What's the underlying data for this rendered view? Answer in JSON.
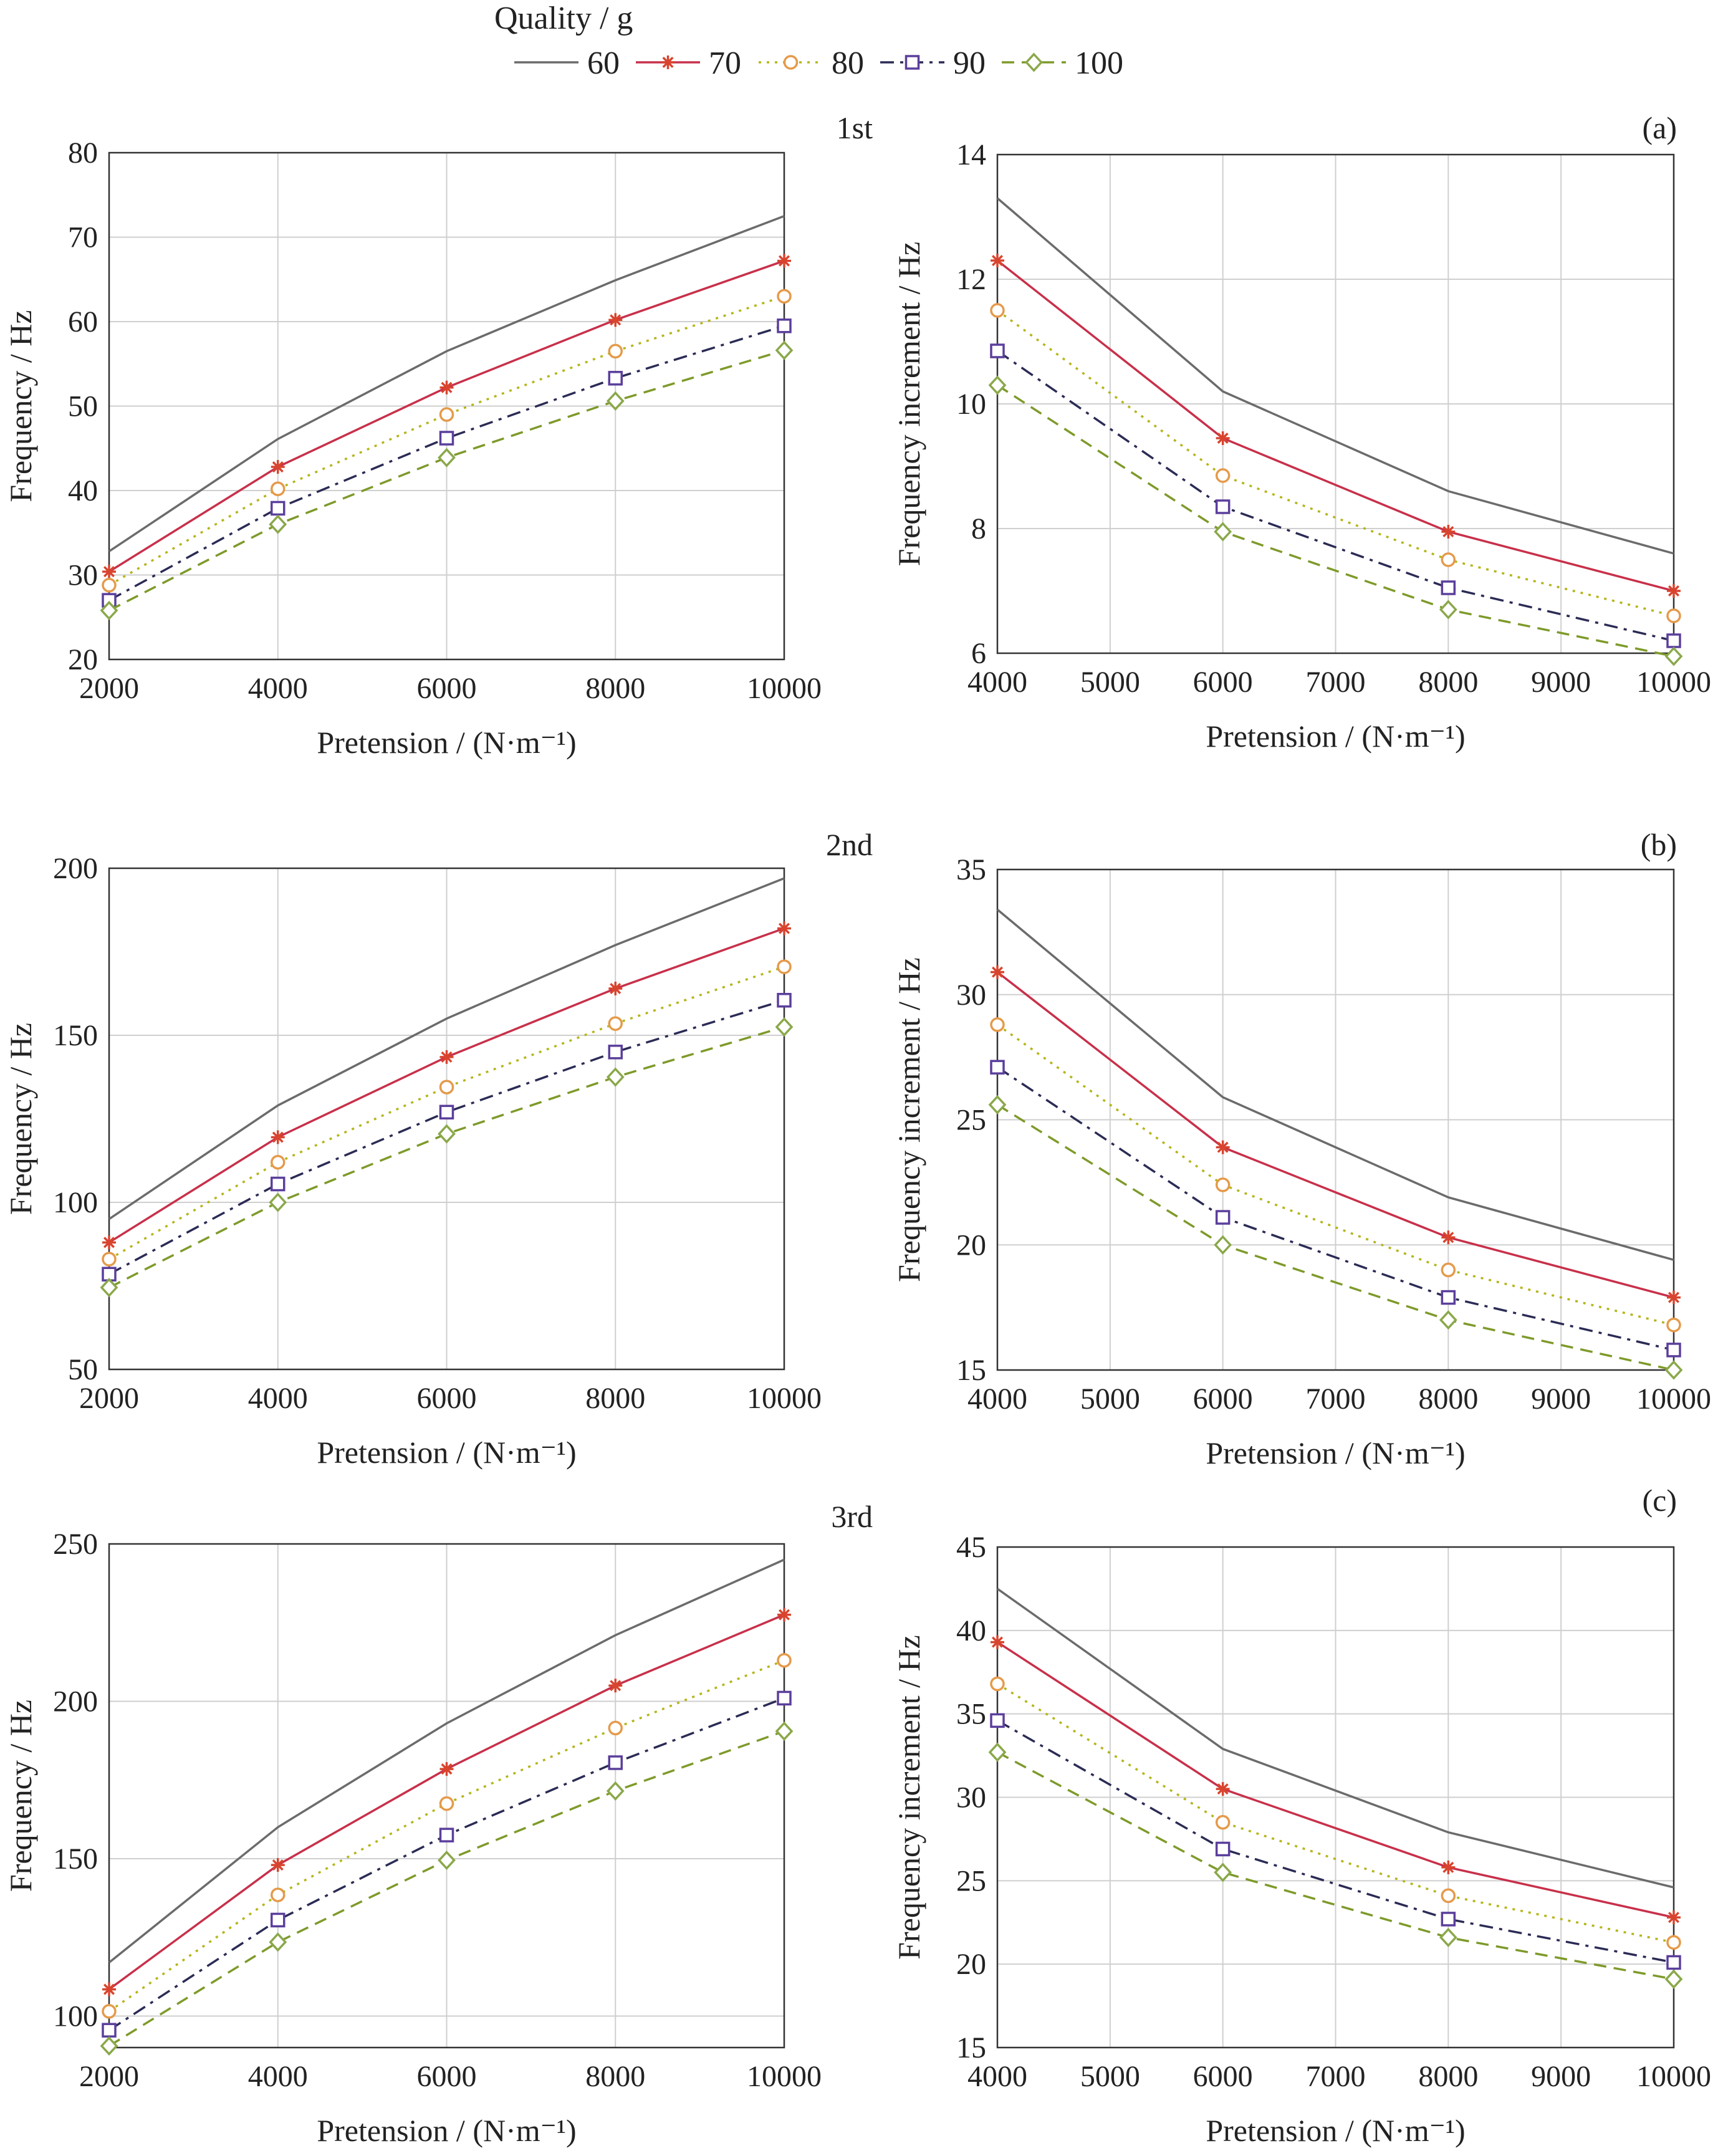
{
  "legend": {
    "title": "Quality / g",
    "entries": [
      {
        "label": "60",
        "color": "#6b6b6b",
        "marker": "none",
        "dash": "solid"
      },
      {
        "label": "70",
        "color": "#c8304a",
        "marker": "star",
        "dash": "solid"
      },
      {
        "label": "80",
        "color": "#b5b51a",
        "marker": "circle",
        "dash": "dotted"
      },
      {
        "label": "90",
        "color": "#2b2b55",
        "marker": "square",
        "dash": "dashdot"
      },
      {
        "label": "100",
        "color": "#7e9a2a",
        "marker": "diamond",
        "dash": "dashed"
      }
    ]
  },
  "marker_colors": {
    "star": "#d8442e",
    "circle": "#e59a4a",
    "square": "#5b3f9c",
    "diamond": "#8aa84a"
  },
  "chart_data": [
    {
      "type": "line",
      "panel_label": "1st",
      "xlabel": "Pretension / (N·m⁻¹)",
      "ylabel": "Frequency / Hz",
      "xlim": [
        2000,
        10000
      ],
      "ylim": [
        20,
        80
      ],
      "xticks": [
        "2000",
        "4000",
        "6000",
        "8000",
        "10000"
      ],
      "yticks": [
        "20",
        "30",
        "40",
        "50",
        "60",
        "70",
        "80"
      ],
      "x": [
        2000,
        4000,
        6000,
        8000,
        10000
      ],
      "series": [
        {
          "name": "60",
          "values": [
            32.8,
            46.1,
            56.5,
            64.9,
            72.5
          ]
        },
        {
          "name": "70",
          "values": [
            30.4,
            42.8,
            52.2,
            60.2,
            67.2
          ]
        },
        {
          "name": "80",
          "values": [
            28.8,
            40.2,
            49.0,
            56.5,
            63.0
          ]
        },
        {
          "name": "90",
          "values": [
            27.0,
            37.9,
            46.2,
            53.3,
            59.5
          ]
        },
        {
          "name": "100",
          "values": [
            25.8,
            36.0,
            43.9,
            50.6,
            56.6
          ]
        }
      ]
    },
    {
      "type": "line",
      "panel_label": "(a)",
      "xlabel": "Pretension / (N·m⁻¹)",
      "ylabel": "Frequency increment / Hz",
      "xlim": [
        4000,
        10000
      ],
      "ylim": [
        6,
        14
      ],
      "xticks": [
        "4000",
        "5000",
        "6000",
        "7000",
        "8000",
        "9000",
        "10000"
      ],
      "yticks": [
        "6",
        "8",
        "10",
        "12",
        "14"
      ],
      "x": [
        4000,
        6000,
        8000,
        10000
      ],
      "series": [
        {
          "name": "60",
          "values": [
            13.3,
            10.2,
            8.6,
            7.6
          ]
        },
        {
          "name": "70",
          "values": [
            12.3,
            9.45,
            7.95,
            7.0
          ]
        },
        {
          "name": "80",
          "values": [
            11.5,
            8.85,
            7.5,
            6.6
          ]
        },
        {
          "name": "90",
          "values": [
            10.85,
            8.35,
            7.05,
            6.2
          ]
        },
        {
          "name": "100",
          "values": [
            10.3,
            7.95,
            6.7,
            5.95
          ]
        }
      ]
    },
    {
      "type": "line",
      "panel_label": "2nd",
      "xlabel": "Pretension / (N·m⁻¹)",
      "ylabel": "Frequency / Hz",
      "xlim": [
        2000,
        10000
      ],
      "ylim": [
        50,
        200
      ],
      "xticks": [
        "2000",
        "4000",
        "6000",
        "8000",
        "10000"
      ],
      "yticks": [
        "50",
        "100",
        "150",
        "200"
      ],
      "x": [
        2000,
        4000,
        6000,
        8000,
        10000
      ],
      "series": [
        {
          "name": "60",
          "values": [
            95,
            129,
            155,
            177,
            197
          ]
        },
        {
          "name": "70",
          "values": [
            88,
            119.5,
            143.5,
            164,
            182
          ]
        },
        {
          "name": "80",
          "values": [
            83,
            112,
            134.5,
            153.5,
            170.5
          ]
        },
        {
          "name": "90",
          "values": [
            78.5,
            105.5,
            127,
            145,
            160.5
          ]
        },
        {
          "name": "100",
          "values": [
            74.5,
            100,
            120.5,
            137.5,
            152.5
          ]
        }
      ]
    },
    {
      "type": "line",
      "panel_label": "(b)",
      "xlabel": "Pretension / (N·m⁻¹)",
      "ylabel": "Frequency increment / Hz",
      "xlim": [
        4000,
        10000
      ],
      "ylim": [
        15,
        35
      ],
      "xticks": [
        "4000",
        "5000",
        "6000",
        "7000",
        "8000",
        "9000",
        "10000"
      ],
      "yticks": [
        "15",
        "20",
        "25",
        "30",
        "35"
      ],
      "x": [
        4000,
        6000,
        8000,
        10000
      ],
      "series": [
        {
          "name": "60",
          "values": [
            33.4,
            25.9,
            21.9,
            19.4
          ]
        },
        {
          "name": "70",
          "values": [
            30.9,
            23.9,
            20.3,
            17.9
          ]
        },
        {
          "name": "80",
          "values": [
            28.8,
            22.4,
            19.0,
            16.8
          ]
        },
        {
          "name": "90",
          "values": [
            27.1,
            21.1,
            17.9,
            15.8
          ]
        },
        {
          "name": "100",
          "values": [
            25.6,
            20.0,
            17.0,
            15.0
          ]
        }
      ]
    },
    {
      "type": "line",
      "panel_label": "3rd",
      "panel_label2": "(c)",
      "xlabel": "Pretension / (N·m⁻¹)",
      "ylabel": "Frequency / Hz",
      "xlim": [
        2000,
        10000
      ],
      "ylim": [
        90,
        250
      ],
      "xticks": [
        "2000",
        "4000",
        "6000",
        "8000",
        "10000"
      ],
      "yticks": [
        "100",
        "150",
        "200",
        "250"
      ],
      "x": [
        2000,
        4000,
        6000,
        8000,
        10000
      ],
      "series": [
        {
          "name": "60",
          "values": [
            117,
            160,
            193,
            221,
            245
          ]
        },
        {
          "name": "70",
          "values": [
            108.5,
            148,
            178.5,
            205,
            227.5
          ]
        },
        {
          "name": "80",
          "values": [
            101.5,
            138.5,
            167.5,
            191.5,
            213
          ]
        },
        {
          "name": "90",
          "values": [
            95.5,
            130.5,
            157.5,
            180.5,
            201
          ]
        },
        {
          "name": "100",
          "values": [
            90.5,
            123.5,
            149.5,
            171.5,
            190.5
          ]
        }
      ]
    },
    {
      "type": "line",
      "panel_label": "",
      "xlabel": "Pretension / (N·m⁻¹)",
      "ylabel": "Frequency increment / Hz",
      "xlim": [
        4000,
        10000
      ],
      "ylim": [
        15,
        45
      ],
      "xticks": [
        "4000",
        "5000",
        "6000",
        "7000",
        "8000",
        "9000",
        "10000"
      ],
      "yticks": [
        "15",
        "20",
        "25",
        "30",
        "35",
        "40",
        "45"
      ],
      "x": [
        4000,
        6000,
        8000,
        10000
      ],
      "series": [
        {
          "name": "60",
          "values": [
            42.5,
            32.9,
            27.9,
            24.6
          ]
        },
        {
          "name": "70",
          "values": [
            39.3,
            30.5,
            25.8,
            22.8
          ]
        },
        {
          "name": "80",
          "values": [
            36.8,
            28.5,
            24.1,
            21.3
          ]
        },
        {
          "name": "90",
          "values": [
            34.6,
            26.9,
            22.7,
            20.1
          ]
        },
        {
          "name": "100",
          "values": [
            32.7,
            25.5,
            21.6,
            19.1
          ]
        }
      ]
    }
  ]
}
